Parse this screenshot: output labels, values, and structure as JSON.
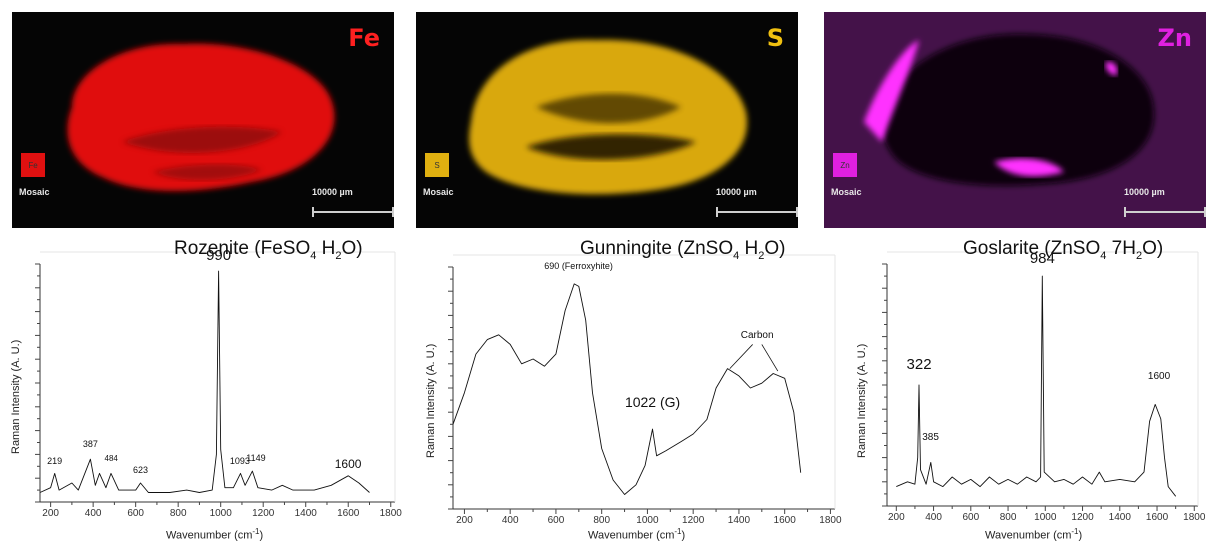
{
  "maps": [
    {
      "element": "Fe",
      "badge": "Fe",
      "mosaic": "Mosaic",
      "scale": "10000 µm",
      "color": "#ff1a1a"
    },
    {
      "element": "S",
      "badge": "S",
      "mosaic": "Mosaic",
      "scale": "10000 µm",
      "color": "#f0c010"
    },
    {
      "element": "Zn",
      "badge": "Zn",
      "mosaic": "Mosaic",
      "scale": "10000 µm",
      "color": "#e020e0"
    }
  ],
  "chart_data": [
    {
      "type": "line",
      "title": {
        "name": "Rozenite (FeSO",
        "sub1": "4",
        "mid": " H",
        "sub2": "2",
        "end": "O)"
      },
      "ylabel": "Raman Intensity (A. U.)",
      "xlabel": {
        "text": "Wavenumber (cm",
        "sup": "-1",
        "end": ")"
      },
      "xlim": [
        150,
        1820
      ],
      "xticks": [
        200,
        400,
        600,
        800,
        1000,
        1200,
        1400,
        1600,
        1800
      ],
      "ylim": [
        0,
        100
      ],
      "series": [
        {
          "points": [
            [
              150,
              4
            ],
            [
              200,
              6
            ],
            [
              219,
              12
            ],
            [
              240,
              5
            ],
            [
              300,
              8
            ],
            [
              330,
              5
            ],
            [
              387,
              18
            ],
            [
              410,
              7
            ],
            [
              430,
              12
            ],
            [
              460,
              6
            ],
            [
              484,
              12
            ],
            [
              520,
              5
            ],
            [
              600,
              5
            ],
            [
              623,
              8
            ],
            [
              660,
              4
            ],
            [
              760,
              4
            ],
            [
              840,
              5
            ],
            [
              900,
              4
            ],
            [
              960,
              5
            ],
            [
              980,
              20
            ],
            [
              990,
              97
            ],
            [
              1000,
              22
            ],
            [
              1020,
              6
            ],
            [
              1060,
              6
            ],
            [
              1093,
              12
            ],
            [
              1115,
              7
            ],
            [
              1149,
              13
            ],
            [
              1175,
              6
            ],
            [
              1240,
              5
            ],
            [
              1290,
              7
            ],
            [
              1340,
              5
            ],
            [
              1440,
              5
            ],
            [
              1520,
              7
            ],
            [
              1600,
              11
            ],
            [
              1650,
              8
            ],
            [
              1700,
              4
            ]
          ]
        }
      ],
      "annotations": [
        {
          "label": "990",
          "x": 990,
          "y": 99,
          "size": 15
        },
        {
          "label": "219",
          "x": 219,
          "y": 14,
          "size": 9
        },
        {
          "label": "387",
          "x": 387,
          "y": 21,
          "size": 9
        },
        {
          "label": "484",
          "x": 484,
          "y": 15,
          "size": 8
        },
        {
          "label": "623",
          "x": 623,
          "y": 10,
          "size": 9
        },
        {
          "label": "1093",
          "x": 1090,
          "y": 14,
          "size": 9
        },
        {
          "label": "1149",
          "x": 1165,
          "y": 15,
          "size": 9
        },
        {
          "label": "1600",
          "x": 1600,
          "y": 12,
          "size": 12
        }
      ]
    },
    {
      "type": "line",
      "title": {
        "name": "Gunningite (ZnSO",
        "sub1": "4",
        "mid": " H",
        "sub2": "2",
        "end": "O)"
      },
      "ylabel": "Raman Intensity (A. U.)",
      "xlabel": {
        "text": "Wavenumber (cm",
        "sup": "-1",
        "end": ")"
      },
      "xlim": [
        150,
        1820
      ],
      "xticks": [
        200,
        400,
        600,
        800,
        1000,
        1200,
        1400,
        1600,
        1800
      ],
      "ylim": [
        0,
        100
      ],
      "series": [
        {
          "points": [
            [
              150,
              35
            ],
            [
              200,
              48
            ],
            [
              250,
              64
            ],
            [
              300,
              70
            ],
            [
              350,
              72
            ],
            [
              400,
              68
            ],
            [
              450,
              60
            ],
            [
              500,
              62
            ],
            [
              550,
              59
            ],
            [
              600,
              64
            ],
            [
              640,
              82
            ],
            [
              680,
              93
            ],
            [
              700,
              92
            ],
            [
              730,
              78
            ],
            [
              760,
              48
            ],
            [
              800,
              25
            ],
            [
              850,
              12
            ],
            [
              900,
              6
            ],
            [
              950,
              10
            ],
            [
              990,
              18
            ],
            [
              1022,
              33
            ],
            [
              1040,
              22
            ],
            [
              1080,
              24
            ],
            [
              1150,
              28
            ],
            [
              1200,
              31
            ],
            [
              1260,
              37
            ],
            [
              1300,
              50
            ],
            [
              1350,
              58
            ],
            [
              1400,
              55
            ],
            [
              1450,
              50
            ],
            [
              1500,
              52
            ],
            [
              1550,
              56
            ],
            [
              1600,
              54
            ],
            [
              1640,
              40
            ],
            [
              1670,
              15
            ]
          ]
        }
      ],
      "annotations": [
        {
          "label": "690 (Ferroxyhite)",
          "x": 700,
          "y": 97,
          "size": 9
        },
        {
          "label": "1022 (G)",
          "x": 1022,
          "y": 40,
          "size": 14
        },
        {
          "label": "Carbon",
          "x": 1480,
          "y": 68,
          "size": 10
        }
      ]
    },
    {
      "type": "line",
      "title": {
        "name": "Goslarite (ZnSO",
        "sub1": "4",
        "mid": " 7H",
        "sub2": "2",
        "end": "O)"
      },
      "ylabel": "Raman Intensity (A. U.)",
      "xlabel": {
        "text": "Wavenumber (cm",
        "sup": "-1",
        "end": ")"
      },
      "xlim": [
        150,
        1820
      ],
      "xticks": [
        200,
        400,
        600,
        800,
        1000,
        1200,
        1400,
        1600,
        1800
      ],
      "ylim": [
        0,
        100
      ],
      "series": [
        {
          "points": [
            [
              200,
              8
            ],
            [
              260,
              10
            ],
            [
              300,
              9
            ],
            [
              315,
              20
            ],
            [
              322,
              50
            ],
            [
              330,
              15
            ],
            [
              360,
              9
            ],
            [
              385,
              18
            ],
            [
              400,
              10
            ],
            [
              450,
              8
            ],
            [
              500,
              12
            ],
            [
              550,
              9
            ],
            [
              600,
              11
            ],
            [
              650,
              8
            ],
            [
              700,
              12
            ],
            [
              750,
              9
            ],
            [
              800,
              11
            ],
            [
              850,
              9
            ],
            [
              900,
              12
            ],
            [
              950,
              10
            ],
            [
              975,
              12
            ],
            [
              984,
              95
            ],
            [
              994,
              14
            ],
            [
              1050,
              10
            ],
            [
              1100,
              11
            ],
            [
              1150,
              9
            ],
            [
              1200,
              12
            ],
            [
              1250,
              9
            ],
            [
              1290,
              14
            ],
            [
              1320,
              10
            ],
            [
              1400,
              11
            ],
            [
              1480,
              10
            ],
            [
              1530,
              14
            ],
            [
              1560,
              35
            ],
            [
              1590,
              42
            ],
            [
              1620,
              36
            ],
            [
              1640,
              20
            ],
            [
              1660,
              8
            ],
            [
              1700,
              4
            ]
          ]
        }
      ],
      "annotations": [
        {
          "label": "322",
          "x": 322,
          "y": 54,
          "size": 15
        },
        {
          "label": "385",
          "x": 385,
          "y": 25,
          "size": 10
        },
        {
          "label": "984",
          "x": 984,
          "y": 98,
          "size": 15
        },
        {
          "label": "1600",
          "x": 1610,
          "y": 50,
          "size": 10
        }
      ]
    }
  ]
}
